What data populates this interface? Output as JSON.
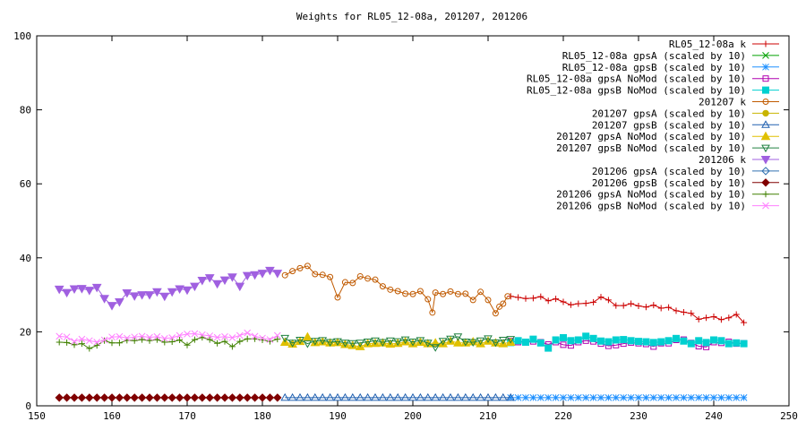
{
  "chart_data": {
    "type": "line",
    "title": "Weights for RL05_12-08a,  201207,  201206",
    "xlabel": "",
    "ylabel": "",
    "xlim": [
      150,
      250
    ],
    "ylim": [
      0,
      100
    ],
    "x_ticks": [
      150,
      160,
      170,
      180,
      190,
      200,
      210,
      220,
      230,
      240,
      250
    ],
    "y_ticks": [
      0,
      20,
      40,
      60,
      80,
      100
    ],
    "grid": false,
    "legend_position": "top-right",
    "series": [
      {
        "name": "RL05_12-08a k",
        "color": "#cc0000",
        "marker": "plus",
        "x": [
          213,
          214,
          215,
          216,
          217,
          218,
          219,
          220,
          221,
          222,
          223,
          224,
          225,
          226,
          227,
          228,
          229,
          230,
          231,
          232,
          233,
          234,
          235,
          236,
          237,
          238,
          239,
          240,
          241,
          242,
          243,
          244
        ],
        "y": [
          29.6,
          29.3,
          29.0,
          29.1,
          29.5,
          28.4,
          28.9,
          28.1,
          27.3,
          27.6,
          27.7,
          28.0,
          29.4,
          28.6,
          27.1,
          27.1,
          27.6,
          27.0,
          26.7,
          27.2,
          26.4,
          26.6,
          25.7,
          25.3,
          25.0,
          23.4,
          23.8,
          24.1,
          23.3,
          23.8,
          24.7,
          22.5
        ]
      },
      {
        "name": "RL05_12-08a gpsA (scaled by 10)",
        "color": "#00a000",
        "marker": "x",
        "x": [],
        "y": []
      },
      {
        "name": "RL05_12-08a gpsB (scaled by 10)",
        "color": "#1e90ff",
        "marker": "star",
        "x": [
          213,
          214,
          215,
          216,
          217,
          218,
          219,
          220,
          221,
          222,
          223,
          224,
          225,
          226,
          227,
          228,
          229,
          230,
          231,
          232,
          233,
          234,
          235,
          236,
          237,
          238,
          239,
          240,
          241,
          242,
          243,
          244
        ],
        "y": [
          2.2,
          2.2,
          2.2,
          2.2,
          2.2,
          2.2,
          2.2,
          2.2,
          2.2,
          2.2,
          2.2,
          2.2,
          2.2,
          2.2,
          2.2,
          2.2,
          2.2,
          2.2,
          2.2,
          2.2,
          2.2,
          2.2,
          2.2,
          2.2,
          2.2,
          2.2,
          2.2,
          2.2,
          2.2,
          2.2,
          2.2,
          2.2
        ]
      },
      {
        "name": "RL05_12-08a gpsA NoMod (scaled by 10)",
        "color": "#b000b0",
        "marker": "square-open",
        "x": [
          213,
          214,
          215,
          216,
          217,
          218,
          219,
          220,
          221,
          222,
          223,
          224,
          225,
          226,
          227,
          228,
          229,
          230,
          231,
          232,
          233,
          234,
          235,
          236,
          237,
          238,
          239,
          240,
          241,
          242,
          243,
          244
        ],
        "y": [
          17.5,
          17.2,
          17.3,
          17.4,
          17.2,
          16.6,
          17.2,
          16.5,
          16.3,
          17.2,
          17.6,
          17.4,
          16.8,
          16.2,
          16.4,
          16.8,
          17.1,
          16.9,
          16.7,
          16.0,
          16.9,
          16.9,
          17.8,
          17.9,
          17.0,
          16.1,
          15.9,
          17.2,
          17.0,
          17.3,
          16.8,
          16.9
        ]
      },
      {
        "name": "RL05_12-08a gpsB NoMod (scaled by 10)",
        "color": "#00d0d0",
        "marker": "square",
        "x": [
          213,
          214,
          215,
          216,
          217,
          218,
          219,
          220,
          221,
          222,
          223,
          224,
          225,
          226,
          227,
          228,
          229,
          230,
          231,
          232,
          233,
          234,
          235,
          236,
          237,
          238,
          239,
          240,
          241,
          242,
          243,
          244
        ],
        "y": [
          17.1,
          17.6,
          17.2,
          18.0,
          17.0,
          15.6,
          17.8,
          18.4,
          17.6,
          17.8,
          18.8,
          18.2,
          17.5,
          17.3,
          17.8,
          17.9,
          17.6,
          17.4,
          17.3,
          17.1,
          17.3,
          17.6,
          18.2,
          17.5,
          16.8,
          17.6,
          17.1,
          17.8,
          17.6,
          16.8,
          17.0,
          16.8
        ]
      },
      {
        "name": "201207 k",
        "color": "#c05a00",
        "marker": "circle-open",
        "x": [
          183,
          184,
          185,
          186,
          187,
          188,
          189,
          190,
          191,
          192,
          193,
          194,
          195,
          196,
          197,
          198,
          199,
          200,
          201,
          202,
          202.6,
          203,
          204,
          205,
          206,
          207,
          208,
          209,
          210,
          211,
          211.5,
          212,
          212.6
        ],
        "y": [
          35.3,
          36.4,
          37.2,
          37.8,
          35.6,
          35.4,
          34.8,
          29.3,
          33.4,
          33.2,
          35.0,
          34.4,
          34.1,
          32.3,
          31.4,
          31.0,
          30.3,
          30.2,
          31.0,
          28.8,
          25.2,
          30.6,
          30.2,
          30.9,
          30.2,
          30.3,
          28.6,
          30.8,
          28.6,
          25.0,
          26.8,
          27.6,
          29.6
        ]
      },
      {
        "name": "201207 gpsA (scaled by 10)",
        "color": "#c8b400",
        "marker": "circle",
        "x": [],
        "y": []
      },
      {
        "name": "201207 gpsB (scaled by 10)",
        "color": "#2060b0",
        "marker": "triangle-open",
        "x": [
          183,
          184,
          185,
          186,
          187,
          188,
          189,
          190,
          191,
          192,
          193,
          194,
          195,
          196,
          197,
          198,
          199,
          200,
          201,
          202,
          203,
          204,
          205,
          206,
          207,
          208,
          209,
          210,
          211,
          212,
          213
        ],
        "y": [
          2.2,
          2.2,
          2.2,
          2.2,
          2.2,
          2.2,
          2.2,
          2.2,
          2.2,
          2.2,
          2.2,
          2.2,
          2.2,
          2.2,
          2.2,
          2.2,
          2.2,
          2.2,
          2.2,
          2.2,
          2.2,
          2.2,
          2.2,
          2.2,
          2.2,
          2.2,
          2.2,
          2.2,
          2.2,
          2.2,
          2.2
        ]
      },
      {
        "name": "201207 gpsA NoMod (scaled by 10)",
        "color": "#e0c000",
        "marker": "triangle",
        "x": [
          183,
          184,
          185,
          186,
          187,
          188,
          189,
          190,
          191,
          192,
          193,
          194,
          195,
          196,
          197,
          198,
          199,
          200,
          201,
          202,
          203,
          204,
          205,
          206,
          207,
          208,
          209,
          210,
          211,
          212,
          213
        ],
        "y": [
          17.2,
          16.7,
          17.4,
          18.6,
          17.1,
          17.3,
          17.0,
          17.1,
          16.6,
          16.3,
          16.0,
          16.8,
          16.9,
          17.0,
          16.7,
          16.9,
          17.3,
          16.8,
          17.2,
          16.8,
          17.0,
          16.8,
          17.5,
          17.0,
          17.0,
          17.3,
          16.8,
          17.5,
          17.0,
          16.8,
          17.2
        ]
      },
      {
        "name": "201207 gpsB NoMod (scaled by 10)",
        "color": "#208040",
        "marker": "triangle-down-open",
        "x": [
          183,
          184,
          185,
          186,
          187,
          188,
          189,
          190,
          191,
          192,
          193,
          194,
          195,
          196,
          197,
          198,
          199,
          200,
          201,
          202,
          203,
          204,
          205,
          206,
          207,
          208,
          209,
          210,
          211,
          212,
          213
        ],
        "y": [
          18.3,
          17.0,
          17.8,
          16.8,
          17.5,
          17.7,
          17.2,
          17.4,
          17.0,
          16.9,
          17.0,
          17.3,
          17.6,
          17.2,
          17.6,
          17.4,
          17.9,
          17.3,
          17.7,
          17.0,
          15.8,
          17.5,
          18.1,
          18.7,
          17.3,
          17.2,
          17.6,
          18.2,
          17.1,
          17.8,
          18.0
        ]
      },
      {
        "name": "201206 k",
        "color": "#a060e0",
        "marker": "triangle-down",
        "x": [
          153,
          154,
          155,
          156,
          157,
          158,
          159,
          160,
          161,
          162,
          163,
          164,
          165,
          166,
          167,
          168,
          169,
          170,
          171,
          172,
          173,
          174,
          175,
          176,
          177,
          178,
          179,
          180,
          181,
          182
        ],
        "y": [
          31.5,
          30.6,
          31.6,
          31.7,
          31.2,
          32.0,
          29.0,
          27.1,
          28.1,
          30.5,
          29.7,
          30.0,
          30.0,
          30.8,
          29.6,
          30.8,
          31.6,
          31.3,
          32.3,
          33.9,
          34.6,
          33.0,
          34.0,
          34.8,
          32.3,
          35.2,
          35.4,
          35.8,
          36.6,
          35.8
        ]
      },
      {
        "name": "201206 gpsA (scaled by 10)",
        "color": "#3070b0",
        "marker": "diamond-open",
        "x": [],
        "y": []
      },
      {
        "name": "201206 gpsB (scaled by 10)",
        "color": "#800000",
        "marker": "diamond",
        "x": [
          153,
          154,
          155,
          156,
          157,
          158,
          159,
          160,
          161,
          162,
          163,
          164,
          165,
          166,
          167,
          168,
          169,
          170,
          171,
          172,
          173,
          174,
          175,
          176,
          177,
          178,
          179,
          180,
          181,
          182
        ],
        "y": [
          2.2,
          2.2,
          2.2,
          2.2,
          2.2,
          2.2,
          2.2,
          2.2,
          2.2,
          2.2,
          2.2,
          2.2,
          2.2,
          2.2,
          2.2,
          2.2,
          2.2,
          2.2,
          2.2,
          2.2,
          2.2,
          2.2,
          2.2,
          2.2,
          2.2,
          2.2,
          2.2,
          2.2,
          2.2,
          2.2
        ]
      },
      {
        "name": "201206 gpsA NoMod (scaled by 10)",
        "color": "#408000",
        "marker": "plus",
        "x": [
          153,
          154,
          155,
          156,
          157,
          158,
          159,
          160,
          161,
          162,
          163,
          164,
          165,
          166,
          167,
          168,
          169,
          170,
          171,
          172,
          173,
          174,
          175,
          176,
          177,
          178,
          179,
          180,
          181,
          182
        ],
        "y": [
          17.2,
          17.1,
          16.5,
          16.8,
          15.5,
          16.3,
          17.6,
          17.0,
          17.0,
          17.7,
          17.6,
          17.9,
          17.6,
          17.9,
          17.2,
          17.3,
          17.8,
          16.4,
          17.9,
          18.5,
          17.9,
          16.9,
          17.4,
          16.0,
          17.4,
          18.1,
          18.1,
          17.8,
          17.4,
          18.0
        ]
      },
      {
        "name": "201206 gpsB NoMod (scaled by 10)",
        "color": "#ff80ff",
        "marker": "x",
        "x": [
          153,
          154,
          155,
          156,
          157,
          158,
          159,
          160,
          161,
          162,
          163,
          164,
          165,
          166,
          167,
          168,
          169,
          170,
          171,
          172,
          173,
          174,
          175,
          176,
          177,
          178,
          179,
          180,
          181,
          182
        ],
        "y": [
          18.8,
          18.6,
          17.4,
          18.0,
          17.6,
          17.2,
          17.8,
          18.6,
          18.7,
          18.3,
          18.6,
          18.8,
          18.5,
          18.7,
          18.2,
          18.4,
          19.0,
          19.4,
          19.5,
          19.2,
          18.9,
          18.5,
          18.7,
          18.4,
          19.0,
          19.7,
          18.8,
          18.3,
          17.9,
          19.0
        ]
      }
    ]
  }
}
